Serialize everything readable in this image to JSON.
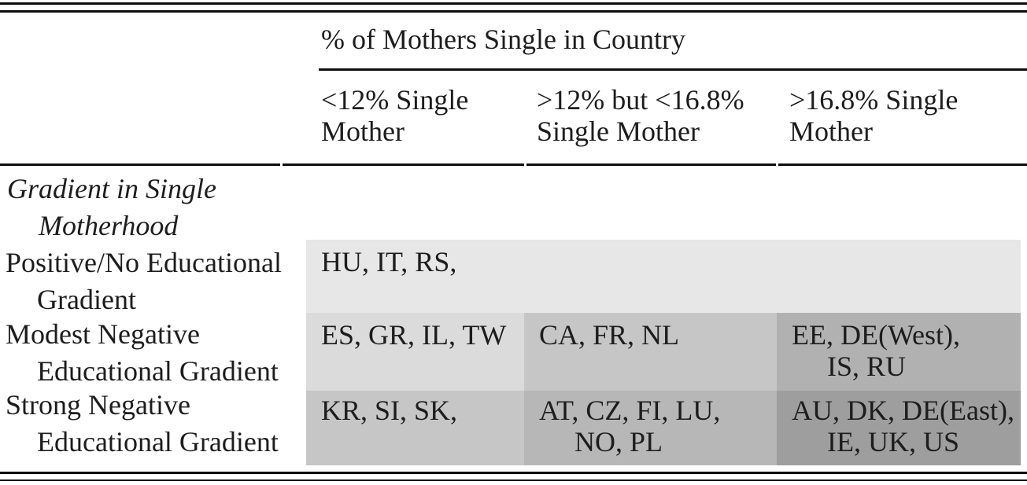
{
  "table": {
    "spanner": "% of Mothers Single in Country",
    "column_headers": [
      {
        "line1": "<12% Single",
        "line2": "Mother"
      },
      {
        "line1": ">12% but <16.8%",
        "line2": "Single Mother"
      },
      {
        "line1": ">16.8% Single",
        "line2": "Mother"
      }
    ],
    "group_header": {
      "line1": "Gradient in Single",
      "line2": "Motherhood"
    },
    "rows": [
      {
        "label_line1": "Positive/No Educational",
        "label_line2": "Gradient",
        "cells": [
          {
            "line1": "HU, IT, RS,",
            "line2": "",
            "bg": "#e7e7e7"
          }
        ]
      },
      {
        "label_line1": "Modest Negative",
        "label_line2": "Educational Gradient",
        "cells": [
          {
            "line1": "ES, GR, IL, TW",
            "line2": "",
            "bg": "#dbdbdb"
          },
          {
            "line1": "CA, FR, NL",
            "line2": "",
            "bg": "#c6c6c6"
          },
          {
            "line1": "EE, DE(West),",
            "line2": "IS, RU",
            "bg": "#b1b1b1"
          }
        ]
      },
      {
        "label_line1": "Strong Negative",
        "label_line2": "Educational Gradient",
        "cells": [
          {
            "line1": "KR, SI, SK,",
            "line2": "",
            "bg": "#c6c6c6"
          },
          {
            "line1": "AT, CZ, FI, LU,",
            "line2": "NO, PL",
            "bg": "#b7b7b7"
          },
          {
            "line1": "AU, DK, DE(East),",
            "line2": "IE, UK, US",
            "bg": "#9e9e9e"
          }
        ]
      }
    ]
  },
  "colors": {
    "text": "#1d1d1d",
    "rule": "#0d0d0d",
    "shade_lightest": "#e7e7e7",
    "shade_light": "#dbdbdb",
    "shade_medium": "#c6c6c6",
    "shade_medium_dark": "#b7b7b7",
    "shade_dark": "#b1b1b1",
    "shade_darkest": "#9e9e9e"
  },
  "chart_data": {
    "type": "table",
    "title": "% of Mothers Single in Country",
    "columns": [
      "<12% Single Mother",
      ">12% but <16.8% Single Mother",
      ">16.8% Single Mother"
    ],
    "row_group": "Gradient in Single Motherhood",
    "rows": [
      {
        "label": "Positive/No Educational Gradient",
        "cells": [
          "HU, IT, RS,",
          "",
          ""
        ]
      },
      {
        "label": "Modest Negative Educational Gradient",
        "cells": [
          "ES, GR, IL, TW",
          "CA, FR, NL",
          "EE, DE(West), IS, RU"
        ]
      },
      {
        "label": "Strong Negative Educational Gradient",
        "cells": [
          "KR, SI, SK,",
          "AT, CZ, FI, LU, NO, PL",
          "AU, DK, DE(East), IE, UK, US"
        ]
      }
    ]
  }
}
